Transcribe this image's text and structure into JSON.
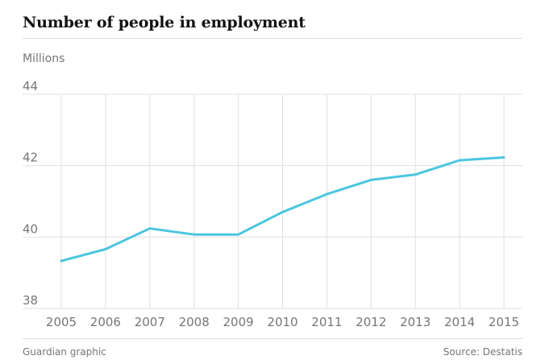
{
  "header": {
    "title": "Number of people in employment",
    "unit_label": "Millions"
  },
  "footer": {
    "credit": "Guardian graphic",
    "source": "Source: Destatis"
  },
  "colors": {
    "line": "#4bc6df",
    "grid": "#e0e0e0",
    "text": "#767676"
  },
  "chart_data": {
    "type": "line",
    "title": "Number of people in employment",
    "ylabel": "Millions",
    "xlabel": "",
    "x": [
      2005,
      2006,
      2007,
      2008,
      2009,
      2010,
      2011,
      2012,
      2013,
      2014,
      2015
    ],
    "series": [
      {
        "values": [
          39.33,
          39.66,
          40.24,
          40.07,
          40.07,
          40.7,
          41.2,
          41.6,
          41.75,
          42.15,
          42.23
        ]
      }
    ],
    "ylim": [
      38,
      44
    ],
    "yticks": [
      38,
      40,
      42,
      44
    ],
    "grid": true
  }
}
